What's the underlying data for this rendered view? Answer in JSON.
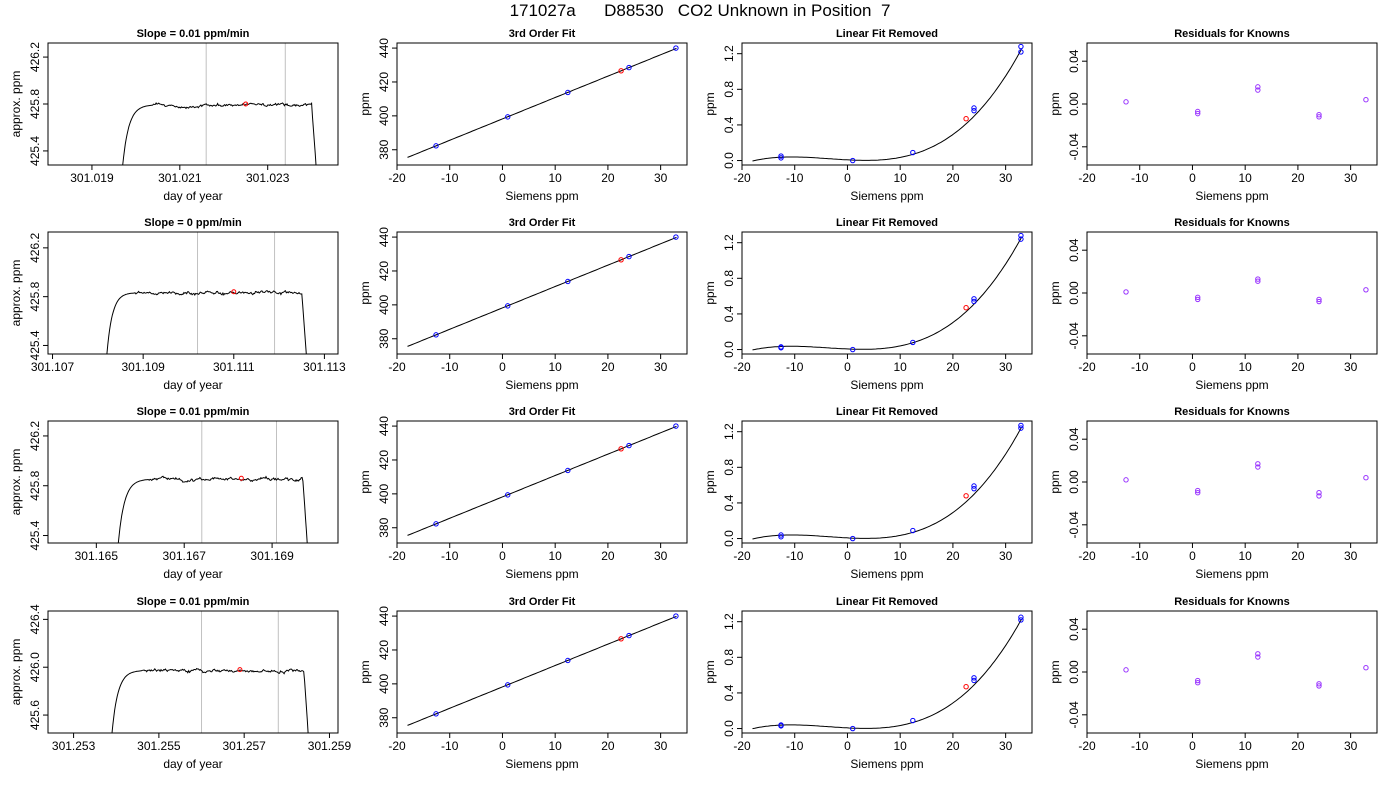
{
  "title": "171027a      D88530   CO2 Unknown in Position  7",
  "axis_text": {
    "time_xlabel": "day of year",
    "time_ylabel": "approx. ppm",
    "fit_title": "3rd Order Fit",
    "lin_title": "Linear Fit Removed",
    "res_title": "Residuals for Knowns",
    "siemens_xlabel": "Siemens ppm",
    "ppm_ylabel": "ppm"
  },
  "colors": {
    "line": "#000000",
    "known": "#0000ff",
    "unknown": "#ff0000",
    "residual": "#9933ff",
    "sample_marker": "#c0c0c0",
    "frame": "#000000"
  },
  "chart_data": [
    {
      "type": "line",
      "row": 1,
      "title": "Slope =  0.01  ppm/min",
      "xlabel": "day of year",
      "ylabel": "approx. ppm",
      "xlim": [
        301.018,
        301.0246
      ],
      "ylim": [
        425.28,
        426.32
      ],
      "xticks": [
        301.019,
        301.021,
        301.023
      ],
      "xtick_labels": [
        "301.019",
        "301.021",
        "301.023"
      ],
      "yticks": [
        425.4,
        425.8,
        426.2
      ],
      "ytick_labels": [
        "425.4",
        "425.8",
        "426.2"
      ],
      "trace": {
        "x_start": 301.0197,
        "x_rise_end": 301.0204,
        "x_drop_start": 301.024,
        "x_end": 301.0241,
        "y_start": 425.28,
        "y_plateau": 425.79,
        "y_end": 425.28
      },
      "guide_lines_x": [
        301.0216,
        301.0234
      ],
      "unknown_point": {
        "x": 301.0225,
        "y": 425.8
      }
    },
    {
      "type": "scatter",
      "row": 1,
      "title": "3rd Order Fit",
      "xlabel": "Siemens ppm",
      "ylabel": "ppm",
      "xlim": [
        -20,
        35
      ],
      "ylim": [
        371,
        443
      ],
      "xticks": [
        -20,
        -10,
        0,
        10,
        20,
        30
      ],
      "yticks": [
        380,
        400,
        420,
        440
      ],
      "curve": {
        "x_from": -18,
        "x_to": 33,
        "coef": [
          398.2,
          1.262
        ]
      },
      "knowns": [
        {
          "x": -12.6,
          "y": 382.3
        },
        {
          "x": 1.0,
          "y": 399.4
        },
        {
          "x": 12.4,
          "y": 413.8
        },
        {
          "x": 24.0,
          "y": 428.5
        },
        {
          "x": 32.9,
          "y": 440.0
        }
      ],
      "unknowns": [
        {
          "x": 22.5,
          "y": 426.6
        }
      ]
    },
    {
      "type": "scatter",
      "row": 1,
      "title": "Linear Fit Removed",
      "xlabel": "Siemens ppm",
      "ylabel": "ppm",
      "xlim": [
        -20,
        35
      ],
      "ylim": [
        -0.05,
        1.32
      ],
      "xticks": [
        -20,
        -10,
        0,
        10,
        20,
        30
      ],
      "yticks": [
        0.0,
        0.4,
        0.8,
        1.2
      ],
      "ytick_labels": [
        "0.0",
        "0.4",
        "0.8",
        "1.2"
      ],
      "curve": {
        "x_from": -18,
        "x_to": 33,
        "coef": [
          0.0077,
          -0.00308,
          0.0003,
          2.83e-05
        ]
      },
      "knowns": [
        {
          "x": -12.6,
          "y": 0.03
        },
        {
          "x": -12.6,
          "y": 0.05
        },
        {
          "x": 1.0,
          "y": 0.0
        },
        {
          "x": 12.4,
          "y": 0.09
        },
        {
          "x": 24.0,
          "y": 0.56
        },
        {
          "x": 24.0,
          "y": 0.59
        },
        {
          "x": 32.9,
          "y": 1.22
        },
        {
          "x": 32.9,
          "y": 1.28
        }
      ],
      "unknowns": [
        {
          "x": 22.5,
          "y": 0.47
        }
      ]
    },
    {
      "type": "scatter",
      "row": 1,
      "title": "Residuals for Knowns",
      "xlabel": "Siemens ppm",
      "ylabel": "ppm",
      "xlim": [
        -20,
        35
      ],
      "ylim": [
        -0.057,
        0.057
      ],
      "xticks": [
        -20,
        -10,
        0,
        10,
        20,
        30
      ],
      "yticks": [
        -0.04,
        0.0,
        0.04
      ],
      "ytick_labels": [
        "-0.04",
        "0.00",
        "0.04"
      ],
      "points": [
        {
          "x": -12.6,
          "y": 0.002
        },
        {
          "x": 1.0,
          "y": -0.007
        },
        {
          "x": 1.0,
          "y": -0.009
        },
        {
          "x": 12.4,
          "y": 0.013
        },
        {
          "x": 12.4,
          "y": 0.016
        },
        {
          "x": 24.0,
          "y": -0.01
        },
        {
          "x": 24.0,
          "y": -0.012
        },
        {
          "x": 32.9,
          "y": 0.004
        }
      ]
    },
    {
      "type": "line",
      "row": 2,
      "title": "Slope =  0  ppm/min",
      "xlabel": "day of year",
      "ylabel": "approx. ppm",
      "xlim": [
        301.1069,
        301.1133
      ],
      "ylim": [
        425.33,
        426.33
      ],
      "xticks": [
        301.107,
        301.109,
        301.111,
        301.113
      ],
      "xtick_labels": [
        "301.107",
        "301.109",
        "301.111",
        "301.113"
      ],
      "yticks": [
        425.4,
        425.8,
        426.2
      ],
      "ytick_labels": [
        "425.4",
        "425.8",
        "426.2"
      ],
      "trace": {
        "x_start": 301.1082,
        "x_rise_end": 301.1088,
        "x_drop_start": 301.1125,
        "x_end": 301.1126,
        "y_start": 425.33,
        "y_plateau": 425.83,
        "y_end": 425.33
      },
      "guide_lines_x": [
        301.1102,
        301.1119
      ],
      "unknown_point": {
        "x": 301.111,
        "y": 425.84
      }
    },
    {
      "type": "scatter",
      "row": 2,
      "title": "3rd Order Fit",
      "xlabel": "Siemens ppm",
      "ylabel": "ppm",
      "xlim": [
        -20,
        35
      ],
      "ylim": [
        371,
        443
      ],
      "xticks": [
        -20,
        -10,
        0,
        10,
        20,
        30
      ],
      "yticks": [
        380,
        400,
        420,
        440
      ],
      "curve": {
        "x_from": -18,
        "x_to": 33,
        "coef": [
          398.2,
          1.262
        ]
      },
      "knowns": [
        {
          "x": -12.6,
          "y": 382.3
        },
        {
          "x": 1.0,
          "y": 399.4
        },
        {
          "x": 12.4,
          "y": 413.8
        },
        {
          "x": 24.0,
          "y": 428.5
        },
        {
          "x": 32.9,
          "y": 440.0
        }
      ],
      "unknowns": [
        {
          "x": 22.5,
          "y": 426.6
        }
      ]
    },
    {
      "type": "scatter",
      "row": 2,
      "title": "Linear Fit Removed",
      "xlabel": "Siemens ppm",
      "ylabel": "ppm",
      "xlim": [
        -20,
        35
      ],
      "ylim": [
        -0.05,
        1.32
      ],
      "xticks": [
        -20,
        -10,
        0,
        10,
        20,
        30
      ],
      "yticks": [
        0.0,
        0.4,
        0.8,
        1.2
      ],
      "ytick_labels": [
        "0.0",
        "0.4",
        "0.8",
        "1.2"
      ],
      "curve": {
        "x_from": -18,
        "x_to": 33,
        "coef": [
          0.0065,
          -0.00255,
          0.00032,
          2.75e-05
        ]
      },
      "knowns": [
        {
          "x": -12.6,
          "y": 0.02
        },
        {
          "x": -12.6,
          "y": 0.03
        },
        {
          "x": 1.0,
          "y": 0.0
        },
        {
          "x": 12.4,
          "y": 0.08
        },
        {
          "x": 24.0,
          "y": 0.54
        },
        {
          "x": 24.0,
          "y": 0.57
        },
        {
          "x": 32.9,
          "y": 1.24
        },
        {
          "x": 32.9,
          "y": 1.28
        }
      ],
      "unknowns": [
        {
          "x": 22.5,
          "y": 0.47
        }
      ]
    },
    {
      "type": "scatter",
      "row": 2,
      "title": "Residuals for Knowns",
      "xlabel": "Siemens ppm",
      "ylabel": "ppm",
      "xlim": [
        -20,
        35
      ],
      "ylim": [
        -0.057,
        0.057
      ],
      "xticks": [
        -20,
        -10,
        0,
        10,
        20,
        30
      ],
      "yticks": [
        -0.04,
        0.0,
        0.04
      ],
      "ytick_labels": [
        "-0.04",
        "0.00",
        "0.04"
      ],
      "points": [
        {
          "x": -12.6,
          "y": 0.001
        },
        {
          "x": 1.0,
          "y": -0.004
        },
        {
          "x": 1.0,
          "y": -0.006
        },
        {
          "x": 12.4,
          "y": 0.011
        },
        {
          "x": 12.4,
          "y": 0.013
        },
        {
          "x": 24.0,
          "y": -0.006
        },
        {
          "x": 24.0,
          "y": -0.008
        },
        {
          "x": 32.9,
          "y": 0.003
        }
      ]
    },
    {
      "type": "line",
      "row": 3,
      "title": "Slope =  0.01  ppm/min",
      "xlabel": "day of year",
      "ylabel": "approx. ppm",
      "xlim": [
        301.1639,
        301.1705
      ],
      "ylim": [
        425.34,
        426.32
      ],
      "xticks": [
        301.165,
        301.167,
        301.169
      ],
      "xtick_labels": [
        "301.165",
        "301.167",
        "301.169"
      ],
      "yticks": [
        425.4,
        425.8,
        426.2
      ],
      "ytick_labels": [
        "425.4",
        "425.8",
        "426.2"
      ],
      "trace": {
        "x_start": 301.1655,
        "x_rise_end": 301.1662,
        "x_drop_start": 301.1697,
        "x_end": 301.1698,
        "y_start": 425.34,
        "y_plateau": 425.85,
        "y_end": 425.34
      },
      "guide_lines_x": [
        301.1674,
        301.1691
      ],
      "unknown_point": {
        "x": 301.1683,
        "y": 425.86
      }
    },
    {
      "type": "scatter",
      "row": 3,
      "title": "3rd Order Fit",
      "xlabel": "Siemens ppm",
      "ylabel": "ppm",
      "xlim": [
        -20,
        35
      ],
      "ylim": [
        371,
        443
      ],
      "xticks": [
        -20,
        -10,
        0,
        10,
        20,
        30
      ],
      "yticks": [
        380,
        400,
        420,
        440
      ],
      "curve": {
        "x_from": -18,
        "x_to": 33,
        "coef": [
          398.2,
          1.262
        ]
      },
      "knowns": [
        {
          "x": -12.6,
          "y": 382.3
        },
        {
          "x": 1.0,
          "y": 399.4
        },
        {
          "x": 12.4,
          "y": 413.8
        },
        {
          "x": 24.0,
          "y": 428.5
        },
        {
          "x": 32.9,
          "y": 440.0
        }
      ],
      "unknowns": [
        {
          "x": 22.5,
          "y": 426.6
        }
      ]
    },
    {
      "type": "scatter",
      "row": 3,
      "title": "Linear Fit Removed",
      "xlabel": "Siemens ppm",
      "ylabel": "ppm",
      "xlim": [
        -20,
        35
      ],
      "ylim": [
        -0.05,
        1.32
      ],
      "xticks": [
        -20,
        -10,
        0,
        10,
        20,
        30
      ],
      "yticks": [
        0.0,
        0.4,
        0.8,
        1.2
      ],
      "ytick_labels": [
        "0.0",
        "0.4",
        "0.8",
        "1.2"
      ],
      "curve": {
        "x_from": -18,
        "x_to": 33,
        "coef": [
          0.0075,
          -0.0031,
          0.0003,
          2.83e-05
        ]
      },
      "knowns": [
        {
          "x": -12.6,
          "y": 0.02
        },
        {
          "x": -12.6,
          "y": 0.04
        },
        {
          "x": 1.0,
          "y": 0.0
        },
        {
          "x": 12.4,
          "y": 0.09
        },
        {
          "x": 24.0,
          "y": 0.56
        },
        {
          "x": 24.0,
          "y": 0.59
        },
        {
          "x": 32.9,
          "y": 1.24
        },
        {
          "x": 32.9,
          "y": 1.27
        }
      ],
      "unknowns": [
        {
          "x": 22.5,
          "y": 0.48
        }
      ]
    },
    {
      "type": "scatter",
      "row": 3,
      "title": "Residuals for Knowns",
      "xlabel": "Siemens ppm",
      "ylabel": "ppm",
      "xlim": [
        -20,
        35
      ],
      "ylim": [
        -0.057,
        0.057
      ],
      "xticks": [
        -20,
        -10,
        0,
        10,
        20,
        30
      ],
      "yticks": [
        -0.04,
        0.0,
        0.04
      ],
      "ytick_labels": [
        "-0.04",
        "0.00",
        "0.04"
      ],
      "points": [
        {
          "x": -12.6,
          "y": 0.002
        },
        {
          "x": 1.0,
          "y": -0.008
        },
        {
          "x": 1.0,
          "y": -0.01
        },
        {
          "x": 12.4,
          "y": 0.014
        },
        {
          "x": 12.4,
          "y": 0.017
        },
        {
          "x": 24.0,
          "y": -0.01
        },
        {
          "x": 24.0,
          "y": -0.013
        },
        {
          "x": 32.9,
          "y": 0.004
        }
      ]
    },
    {
      "type": "line",
      "row": 4,
      "title": "Slope =  0.01  ppm/min",
      "xlabel": "day of year",
      "ylabel": "approx. ppm",
      "xlim": [
        301.2524,
        301.2592
      ],
      "ylim": [
        425.45,
        426.47
      ],
      "xticks": [
        301.253,
        301.255,
        301.257,
        301.259
      ],
      "xtick_labels": [
        "301.253",
        "301.255",
        "301.257",
        "301.259"
      ],
      "yticks": [
        425.6,
        426.0,
        426.4
      ],
      "ytick_labels": [
        "425.6",
        "426.0",
        "426.4"
      ],
      "trace": {
        "x_start": 301.2539,
        "x_rise_end": 301.2546,
        "x_drop_start": 301.2584,
        "x_end": 301.2585,
        "y_start": 425.45,
        "y_plateau": 425.97,
        "y_end": 425.45
      },
      "guide_lines_x": [
        301.256,
        301.2578
      ],
      "unknown_point": {
        "x": 301.2569,
        "y": 425.98
      }
    },
    {
      "type": "scatter",
      "row": 4,
      "title": "3rd Order Fit",
      "xlabel": "Siemens ppm",
      "ylabel": "ppm",
      "xlim": [
        -20,
        35
      ],
      "ylim": [
        371,
        443
      ],
      "xticks": [
        -20,
        -10,
        0,
        10,
        20,
        30
      ],
      "yticks": [
        380,
        400,
        420,
        440
      ],
      "curve": {
        "x_from": -18,
        "x_to": 33,
        "coef": [
          398.2,
          1.262
        ]
      },
      "knowns": [
        {
          "x": -12.6,
          "y": 382.3
        },
        {
          "x": 1.0,
          "y": 399.4
        },
        {
          "x": 12.4,
          "y": 413.8
        },
        {
          "x": 24.0,
          "y": 428.5
        },
        {
          "x": 32.9,
          "y": 440.0
        }
      ],
      "unknowns": [
        {
          "x": 22.5,
          "y": 426.6
        }
      ]
    },
    {
      "type": "scatter",
      "row": 4,
      "title": "Linear Fit Removed",
      "xlabel": "Siemens ppm",
      "ylabel": "ppm",
      "xlim": [
        -20,
        35
      ],
      "ylim": [
        -0.05,
        1.32
      ],
      "xticks": [
        -20,
        -10,
        0,
        10,
        20,
        30
      ],
      "yticks": [
        0.0,
        0.4,
        0.8,
        1.2
      ],
      "ytick_labels": [
        "0.0",
        "0.4",
        "0.8",
        "1.2"
      ],
      "curve": {
        "x_from": -18,
        "x_to": 33,
        "coef": [
          0.0074,
          -0.0031,
          0.0003,
          2.77e-05
        ]
      },
      "knowns": [
        {
          "x": -12.6,
          "y": 0.03
        },
        {
          "x": -12.6,
          "y": 0.04
        },
        {
          "x": 1.0,
          "y": 0.0
        },
        {
          "x": 12.4,
          "y": 0.09
        },
        {
          "x": 24.0,
          "y": 0.54
        },
        {
          "x": 24.0,
          "y": 0.57
        },
        {
          "x": 32.9,
          "y": 1.22
        },
        {
          "x": 32.9,
          "y": 1.25
        }
      ],
      "unknowns": [
        {
          "x": 22.5,
          "y": 0.47
        }
      ]
    },
    {
      "type": "scatter",
      "row": 4,
      "title": "Residuals for Knowns",
      "xlabel": "Siemens ppm",
      "ylabel": "ppm",
      "xlim": [
        -20,
        35
      ],
      "ylim": [
        -0.057,
        0.057
      ],
      "xticks": [
        -20,
        -10,
        0,
        10,
        20,
        30
      ],
      "yticks": [
        -0.04,
        0.0,
        0.04
      ],
      "ytick_labels": [
        "-0.04",
        "0.00",
        "0.04"
      ],
      "points": [
        {
          "x": -12.6,
          "y": 0.002
        },
        {
          "x": 1.0,
          "y": -0.008
        },
        {
          "x": 1.0,
          "y": -0.01
        },
        {
          "x": 12.4,
          "y": 0.014
        },
        {
          "x": 12.4,
          "y": 0.017
        },
        {
          "x": 24.0,
          "y": -0.011
        },
        {
          "x": 24.0,
          "y": -0.013
        },
        {
          "x": 32.9,
          "y": 0.004
        }
      ]
    }
  ]
}
